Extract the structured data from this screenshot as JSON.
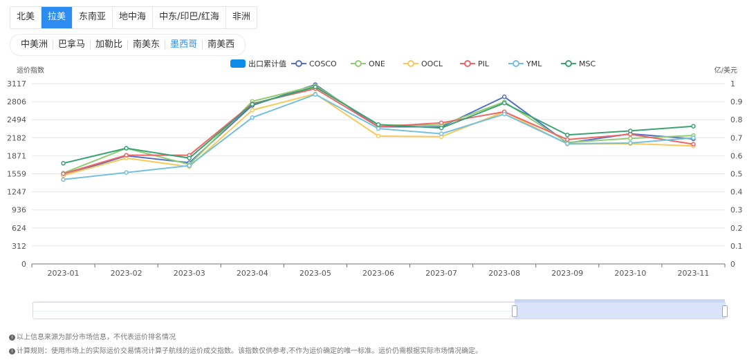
{
  "region_tabs": [
    {
      "label": "北美",
      "active": false
    },
    {
      "label": "拉美",
      "active": true
    },
    {
      "label": "东南亚",
      "active": false
    },
    {
      "label": "地中海",
      "active": false
    },
    {
      "label": "中东/印巴/红海",
      "active": false
    },
    {
      "label": "非洲",
      "active": false
    }
  ],
  "sub_tabs": [
    {
      "label": "中美洲",
      "active": false
    },
    {
      "label": "巴拿马",
      "active": false
    },
    {
      "label": "加勒比",
      "active": false
    },
    {
      "label": "南美东",
      "active": false
    },
    {
      "label": "墨西哥",
      "active": true
    },
    {
      "label": "南美西",
      "active": false
    }
  ],
  "notes": [
    "以上信息来源为部分市场信息，不代表运价排名情况",
    "计算规则：使用市场上的实际运价交易情况计算子航线的运价成交指数。该指数仅供参考,不作为运价确定的唯一标准。运价仍需根据实际市场情况确定。"
  ],
  "chart_data": {
    "type": "line",
    "ylabel": "运价指数",
    "y2label": "亿/美元",
    "categories": [
      "2023-01",
      "2023-02",
      "2023-03",
      "2023-04",
      "2023-05",
      "2023-06",
      "2023-07",
      "2023-08",
      "2023-09",
      "2023-10",
      "2023-11"
    ],
    "y_ticks": [
      "0",
      "312",
      "624",
      "936",
      "1247",
      "1559",
      "1871",
      "2182",
      "2494",
      "2806",
      "3117"
    ],
    "y2_ticks": [
      "0",
      "0.1",
      "0.2",
      "0.3",
      "0.4",
      "0.5",
      "0.6",
      "0.7",
      "0.8",
      "0.9",
      "1"
    ],
    "ylim": [
      0,
      3117
    ],
    "y2lim": [
      0,
      1
    ],
    "legend_position": "top-center",
    "grid": true,
    "bar_series": {
      "name": "出口累计值",
      "color": "#0d8ce9",
      "values": []
    },
    "series": [
      {
        "name": "COSCO",
        "color": "#5470c6",
        "values": [
          1530,
          1870,
          1750,
          2740,
          3100,
          2370,
          2370,
          2890,
          2090,
          2250,
          2160
        ]
      },
      {
        "name": "ONE",
        "color": "#91cc75",
        "values": [
          1570,
          2000,
          1720,
          2810,
          3080,
          2400,
          2400,
          2800,
          2100,
          2170,
          2220
        ]
      },
      {
        "name": "OOCL",
        "color": "#fac858",
        "values": [
          1530,
          1830,
          1680,
          2660,
          2940,
          2210,
          2200,
          2630,
          2070,
          2080,
          2040
        ]
      },
      {
        "name": "PIL",
        "color": "#ee6666",
        "values": [
          1560,
          1880,
          1880,
          2770,
          3030,
          2370,
          2440,
          2630,
          2150,
          2240,
          2070
        ]
      },
      {
        "name": "YML",
        "color": "#73c0de",
        "values": [
          1460,
          1580,
          1700,
          2530,
          2930,
          2340,
          2250,
          2590,
          2080,
          2090,
          2180
        ]
      },
      {
        "name": "MSC",
        "color": "#3ba272",
        "values": [
          1740,
          2000,
          1830,
          2760,
          3060,
          2410,
          2350,
          2780,
          2230,
          2300,
          2380
        ]
      }
    ]
  }
}
